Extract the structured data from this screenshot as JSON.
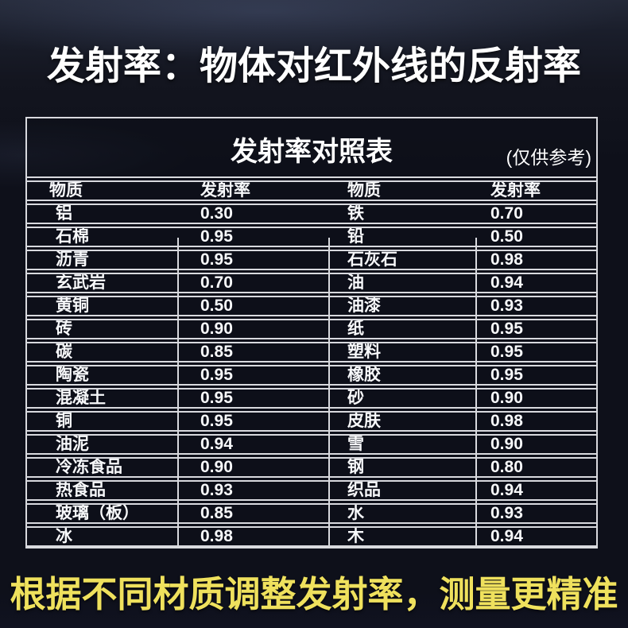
{
  "page": {
    "main_title": "发射率：物体对红外线的反射率",
    "footer_note": "根据不同材质调整发射率，测量更精准",
    "colors": {
      "background": "#0e101a",
      "table_line": "#d8d9de",
      "text_white": "#ffffff",
      "accent_yellow": "#efe15d"
    }
  },
  "table": {
    "title": "发射率对照表",
    "note": "(仅供参考)",
    "headers": [
      "物质",
      "发射率",
      "物质",
      "发射率"
    ],
    "rows": [
      [
        "铝",
        "0.30",
        "铁",
        "0.70"
      ],
      [
        "石棉",
        "0.95",
        "铅",
        "0.50"
      ],
      [
        "沥青",
        "0.95",
        "石灰石",
        "0.98"
      ],
      [
        "玄武岩",
        "0.70",
        "油",
        "0.94"
      ],
      [
        "黄铜",
        "0.50",
        "油漆",
        "0.93"
      ],
      [
        "砖",
        "0.90",
        "纸",
        "0.95"
      ],
      [
        "碳",
        "0.85",
        "塑料",
        "0.95"
      ],
      [
        "陶瓷",
        "0.95",
        "橡胶",
        "0.95"
      ],
      [
        "混凝土",
        "0.95",
        "砂",
        "0.90"
      ],
      [
        "铜",
        "0.95",
        "皮肤",
        "0.98"
      ],
      [
        "油泥",
        "0.94",
        "雪",
        "0.90"
      ],
      [
        "冷冻食品",
        "0.90",
        "钢",
        "0.80"
      ],
      [
        "热食品",
        "0.93",
        "织品",
        "0.94"
      ],
      [
        "玻璃（板）",
        "0.85",
        "水",
        "0.93"
      ],
      [
        "冰",
        "0.98",
        "木",
        "0.94"
      ]
    ]
  }
}
